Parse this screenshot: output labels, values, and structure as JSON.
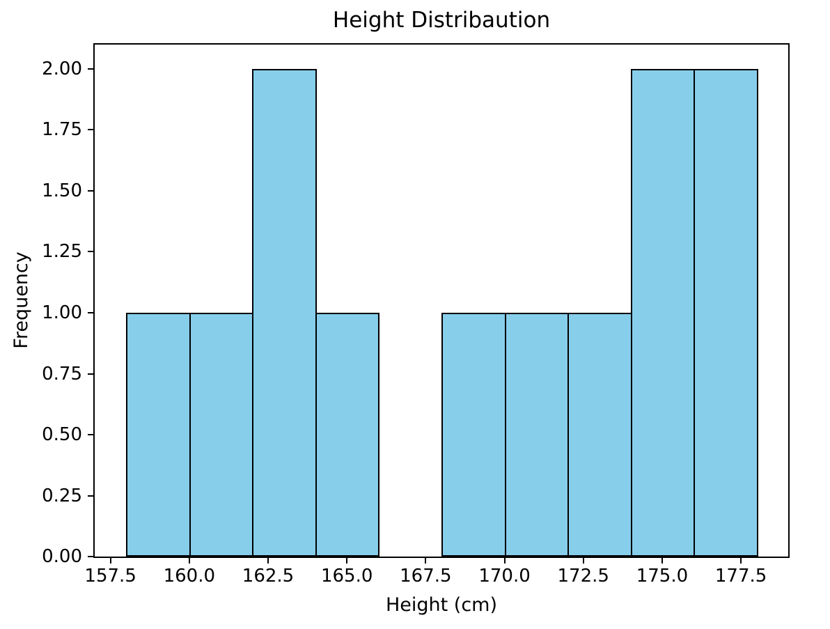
{
  "figure": {
    "background_color": "#ffffff"
  },
  "chart_data": {
    "type": "bar",
    "subtype": "histogram",
    "title": "Height Distribaution",
    "xlabel": "Height (cm)",
    "ylabel": "Frequency",
    "bin_edges": [
      158,
      160,
      162,
      164,
      166,
      168,
      170,
      172,
      174,
      176,
      178
    ],
    "counts": [
      1,
      1,
      2,
      1,
      0,
      1,
      1,
      1,
      2,
      2
    ],
    "xlim": [
      157,
      179
    ],
    "ylim": [
      0,
      2.1
    ],
    "xticks": [
      157.5,
      160.0,
      162.5,
      165.0,
      167.5,
      170.0,
      172.5,
      175.0,
      177.5
    ],
    "xtick_labels": [
      "157.5",
      "160.0",
      "162.5",
      "165.0",
      "167.5",
      "170.0",
      "172.5",
      "175.0",
      "177.5"
    ],
    "yticks": [
      0.0,
      0.25,
      0.5,
      0.75,
      1.0,
      1.25,
      1.5,
      1.75,
      2.0
    ],
    "ytick_labels": [
      "0.00",
      "0.25",
      "0.50",
      "0.75",
      "1.00",
      "1.25",
      "1.50",
      "1.75",
      "2.00"
    ],
    "bar_fill_color": "#87CEEB",
    "bar_edge_color": "#000000",
    "grid": false,
    "legend_position": "none"
  }
}
